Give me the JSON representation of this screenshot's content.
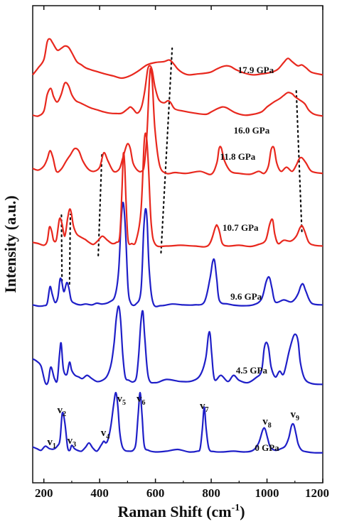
{
  "chart_data": {
    "type": "line",
    "xlabel_main": "Raman Shift (cm",
    "xlabel_sup": "-1",
    "xlabel_end": ")",
    "ylabel": "Intensity (a.u.)",
    "xlim": [
      160,
      1200
    ],
    "xticks": [
      200,
      400,
      600,
      800,
      1000,
      1200
    ],
    "colors": {
      "low_pressure": "#1f1fc8",
      "high_pressure": "#e8281e"
    },
    "series": [
      {
        "name": "0 GPa",
        "color": "#1f1fc8",
        "x": [
          160,
          175,
          190,
          205,
          220,
          235,
          248,
          258,
          266,
          275,
          285,
          293,
          300,
          310,
          320,
          335,
          350,
          362,
          375,
          390,
          405,
          415,
          422,
          430,
          440,
          450,
          458,
          465,
          472,
          480,
          490,
          505,
          520,
          530,
          538,
          545,
          552,
          560,
          575,
          600,
          640,
          680,
          720,
          750,
          760,
          768,
          775,
          782,
          792,
          810,
          840,
          880,
          920,
          950,
          970,
          985,
          993,
          1002,
          1012,
          1030,
          1050,
          1065,
          1078,
          1088,
          1096,
          1104,
          1112,
          1125,
          1145,
          1170,
          1200
        ],
        "y": [
          18,
          14,
          10,
          20,
          14,
          13,
          20,
          36,
          100,
          78,
          18,
          10,
          22,
          14,
          10,
          8,
          18,
          28,
          16,
          8,
          22,
          32,
          28,
          36,
          68,
          120,
          150,
          118,
          55,
          22,
          10,
          8,
          10,
          28,
          96,
          150,
          95,
          22,
          10,
          6,
          8,
          12,
          6,
          8,
          14,
          60,
          115,
          62,
          14,
          7,
          6,
          8,
          6,
          10,
          28,
          60,
          62,
          40,
          18,
          10,
          14,
          20,
          40,
          70,
          72,
          50,
          25,
          10,
          6,
          4,
          4
        ]
      },
      {
        "name": "4.5 GPa",
        "color": "#1f1fc8",
        "x": [
          160,
          175,
          190,
          205,
          215,
          225,
          238,
          248,
          256,
          262,
          270,
          282,
          292,
          300,
          312,
          325,
          338,
          355,
          372,
          390,
          410,
          428,
          442,
          452,
          460,
          468,
          475,
          483,
          492,
          505,
          520,
          532,
          540,
          548,
          555,
          562,
          575,
          600,
          640,
          690,
          730,
          760,
          780,
          790,
          796,
          802,
          812,
          835,
          860,
          880,
          900,
          930,
          960,
          980,
          990,
          998,
          1006,
          1015,
          1030,
          1045,
          1060,
          1080,
          1095,
          1105,
          1112,
          1120,
          1135,
          1160,
          1200
        ],
        "y": [
          70,
          64,
          52,
          12,
          14,
          50,
          22,
          18,
          80,
          108,
          45,
          32,
          62,
          42,
          30,
          26,
          22,
          30,
          22,
          15,
          18,
          30,
          60,
          110,
          170,
          198,
          165,
          80,
          26,
          18,
          14,
          26,
          80,
          160,
          185,
          120,
          25,
          12,
          20,
          15,
          16,
          30,
          70,
          128,
          130,
          80,
          20,
          30,
          15,
          30,
          18,
          12,
          24,
          40,
          95,
          110,
          95,
          50,
          26,
          40,
          34,
          90,
          125,
          128,
          110,
          60,
          22,
          10,
          8
        ]
      },
      {
        "name": "9.6 GPa",
        "color": "#1f1fc8",
        "x": [
          160,
          180,
          200,
          212,
          222,
          230,
          240,
          250,
          258,
          264,
          272,
          282,
          290,
          298,
          310,
          330,
          350,
          372,
          390,
          410,
          435,
          455,
          468,
          476,
          482,
          487,
          494,
          502,
          512,
          530,
          548,
          558,
          564,
          570,
          578,
          592,
          620,
          660,
          700,
          740,
          775,
          795,
          805,
          812,
          820,
          830,
          860,
          900,
          950,
          980,
          996,
          1004,
          1010,
          1018,
          1030,
          1060,
          1085,
          1100,
          1112,
          1122,
          1130,
          1140,
          1160,
          1200
        ],
        "y": [
          8,
          5,
          6,
          12,
          52,
          34,
          14,
          26,
          70,
          65,
          40,
          62,
          48,
          20,
          12,
          8,
          10,
          8,
          12,
          10,
          15,
          30,
          90,
          200,
          252,
          245,
          170,
          48,
          12,
          10,
          42,
          190,
          240,
          215,
          90,
          12,
          6,
          10,
          8,
          8,
          15,
          70,
          112,
          115,
          70,
          18,
          10,
          6,
          8,
          22,
          62,
          75,
          72,
          48,
          15,
          20,
          15,
          22,
          36,
          55,
          58,
          40,
          12,
          8
        ]
      },
      {
        "name": "10.7 GPa",
        "color": "#e8281e",
        "x": [
          160,
          180,
          200,
          212,
          220,
          228,
          235,
          245,
          256,
          265,
          275,
          285,
          292,
          298,
          306,
          318,
          332,
          348,
          362,
          378,
          395,
          410,
          428,
          445,
          460,
          472,
          480,
          485,
          490,
          495,
          502,
          515,
          530,
          548,
          560,
          568,
          575,
          585,
          600,
          640,
          690,
          740,
          790,
          815,
          822,
          830,
          840,
          860,
          900,
          940,
          970,
          995,
          1010,
          1020,
          1028,
          1040,
          1060,
          1085,
          1105,
          1118,
          1126,
          1135,
          1150,
          1170,
          1200
        ],
        "y": [
          15,
          12,
          8,
          18,
          52,
          42,
          20,
          22,
          72,
          60,
          30,
          72,
          95,
          88,
          55,
          35,
          28,
          22,
          15,
          10,
          20,
          30,
          20,
          12,
          15,
          30,
          140,
          230,
          200,
          110,
          20,
          12,
          18,
          90,
          260,
          270,
          200,
          60,
          10,
          6,
          8,
          6,
          8,
          52,
          55,
          40,
          12,
          6,
          8,
          5,
          10,
          20,
          60,
          70,
          35,
          12,
          20,
          18,
          30,
          50,
          55,
          42,
          15,
          8,
          6
        ]
      },
      {
        "name": "11.8 GPa",
        "color": "#e8281e",
        "x": [
          160,
          180,
          200,
          212,
          222,
          232,
          245,
          262,
          280,
          295,
          310,
          325,
          340,
          360,
          380,
          400,
          415,
          430,
          450,
          470,
          482,
          495,
          502,
          510,
          520,
          535,
          550,
          560,
          570,
          580,
          588,
          598,
          615,
          640,
          670,
          710,
          760,
          800,
          820,
          828,
          836,
          848,
          870,
          900,
          940,
          970,
          990,
          1005,
          1015,
          1025,
          1035,
          1050,
          1070,
          1090,
          1105,
          1115,
          1125,
          1140,
          1160,
          1200
        ],
        "y": [
          22,
          18,
          28,
          45,
          65,
          50,
          15,
          20,
          40,
          55,
          70,
          65,
          40,
          20,
          15,
          25,
          60,
          40,
          15,
          20,
          45,
          75,
          82,
          70,
          35,
          18,
          15,
          30,
          110,
          255,
          240,
          120,
          30,
          10,
          12,
          10,
          15,
          8,
          35,
          70,
          72,
          40,
          15,
          10,
          8,
          15,
          10,
          28,
          68,
          72,
          35,
          15,
          25,
          15,
          30,
          45,
          48,
          35,
          15,
          10
        ]
      },
      {
        "name": "16.0 GPa",
        "color": "#e8281e",
        "x": [
          160,
          180,
          200,
          212,
          225,
          235,
          248,
          262,
          275,
          288,
          300,
          315,
          330,
          345,
          360,
          375,
          395,
          415,
          435,
          460,
          480,
          500,
          510,
          520,
          535,
          550,
          562,
          572,
          580,
          588,
          598,
          612,
          630,
          645,
          655,
          670,
          700,
          740,
          780,
          800,
          820,
          840,
          855,
          870,
          890,
          920,
          950,
          980,
          1000,
          1010,
          1025,
          1045,
          1060,
          1075,
          1090,
          1100,
          1115,
          1135,
          1150,
          1170,
          1200
        ],
        "y": [
          10,
          8,
          20,
          60,
          75,
          55,
          42,
          60,
          88,
          82,
          60,
          45,
          40,
          35,
          30,
          26,
          22,
          18,
          15,
          14,
          15,
          25,
          30,
          25,
          15,
          30,
          70,
          120,
          130,
          120,
          80,
          48,
          40,
          45,
          40,
          25,
          20,
          15,
          12,
          18,
          25,
          30,
          28,
          22,
          15,
          10,
          12,
          18,
          30,
          35,
          42,
          50,
          58,
          65,
          62,
          55,
          48,
          38,
          22,
          12,
          8
        ]
      },
      {
        "name": "17.9 GPa",
        "color": "#e8281e",
        "x": [
          160,
          180,
          200,
          212,
          222,
          232,
          248,
          262,
          275,
          288,
          300,
          318,
          335,
          350,
          370,
          395,
          420,
          450,
          480,
          510,
          540,
          570,
          600,
          630,
          650,
          665,
          680,
          700,
          720,
          750,
          780,
          800,
          820,
          840,
          855,
          870,
          890,
          920,
          950,
          980,
          1000,
          1020,
          1040,
          1060,
          1075,
          1090,
          1110,
          1125,
          1140,
          1160,
          1200
        ],
        "y": [
          8,
          25,
          45,
          88,
          95,
          85,
          68,
          72,
          78,
          75,
          62,
          40,
          32,
          25,
          20,
          15,
          10,
          5,
          0,
          6,
          18,
          32,
          38,
          40,
          44,
          35,
          22,
          12,
          8,
          10,
          12,
          15,
          22,
          28,
          30,
          28,
          20,
          12,
          8,
          10,
          12,
          15,
          22,
          38,
          48,
          40,
          30,
          32,
          25,
          14,
          8
        ]
      }
    ],
    "series_labels": [
      {
        "text": "0 GPa",
        "x": 0,
        "y": 0
      },
      {
        "text": "4.5 GPa",
        "x": 0,
        "y": 0
      },
      {
        "text": "9.6 GPa",
        "x": 0,
        "y": 0
      },
      {
        "text": "10.7 GPa",
        "x": 0,
        "y": 0
      },
      {
        "text": "11.8 GPa",
        "x": 0,
        "y": 0
      },
      {
        "text": "16.0 GPa",
        "x": 0,
        "y": 0
      },
      {
        "text": "17.9 GPa",
        "x": 0,
        "y": 0
      }
    ],
    "mode_labels": [
      {
        "base": "v",
        "sub": "1"
      },
      {
        "base": "v",
        "sub": "2"
      },
      {
        "base": "v",
        "sub": "3"
      },
      {
        "base": "v",
        "sub": "4"
      },
      {
        "base": "v",
        "sub": "5"
      },
      {
        "base": "v",
        "sub": "6"
      },
      {
        "base": "v",
        "sub": "7"
      },
      {
        "base": "v",
        "sub": "8"
      },
      {
        "base": "v",
        "sub": "9"
      }
    ],
    "guide_lines": [
      {
        "x1": 265,
        "x2": 263,
        "from": "9.6 GPa",
        "to": "10.7 GPa"
      },
      {
        "x1": 292,
        "x2": 295,
        "from": "9.6 GPa",
        "to": "10.7 GPa"
      },
      {
        "x1": 395,
        "x2": 408,
        "from": "10.7 GPa",
        "to": "11.8 GPa"
      },
      {
        "x1": 620,
        "x2": 660,
        "from": "10.7 GPa",
        "to": "17.9 GPa"
      },
      {
        "x1": 1125,
        "x2": 1105,
        "from": "10.7 GPa",
        "to": "16.0 GPa"
      }
    ]
  }
}
